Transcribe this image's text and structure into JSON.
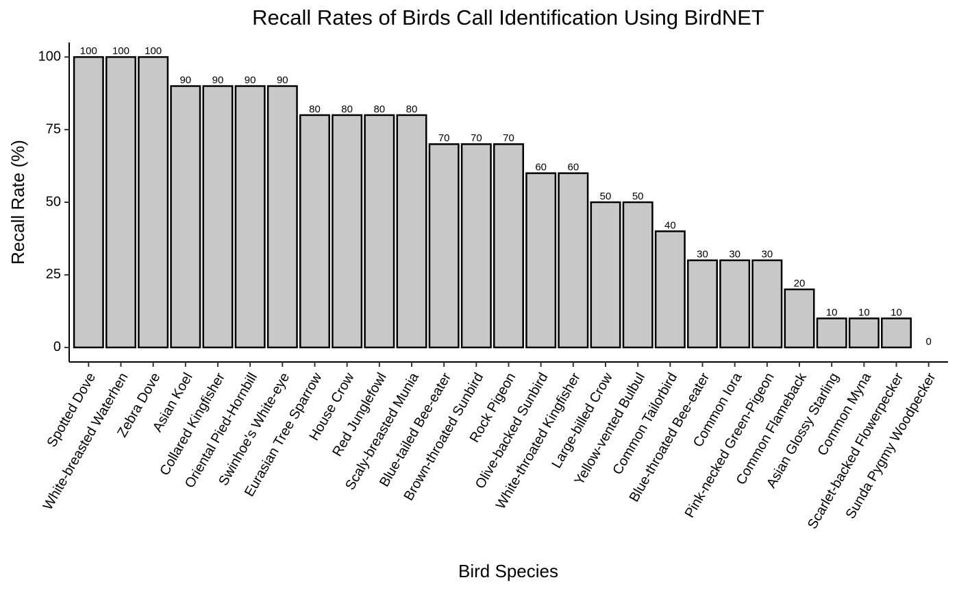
{
  "chart_data": {
    "type": "bar",
    "title": "Recall Rates of Birds Call Identification Using BirdNET",
    "x_label": "Bird Species",
    "y_label": "Recall Rate (%)",
    "categories": [
      "Spotted Dove",
      "White-breasted Waterhen",
      "Zebra Dove",
      "Asian Koel",
      "Collared Kingfisher",
      "Oriental Pied-Hornbill",
      "Swinhoe's White-eye",
      "Eurasian Tree Sparrow",
      "House Crow",
      "Red Junglefowl",
      "Scaly-breasted Munia",
      "Blue-tailed Bee-eater",
      "Brown-throated Sunbird",
      "Rock Pigeon",
      "Olive-backed Sunbird",
      "White-throated Kingfisher",
      "Large-billed Crow",
      "Yellow-vented Bulbul",
      "Common Tailorbird",
      "Blue-throated Bee-eater",
      "Common Iora",
      "Pink-necked Green-Pigeon",
      "Common Flameback",
      "Asian Glossy Starling",
      "Common Myna",
      "Scarlet-backed Flowerpecker",
      "Sunda Pygmy Woodpecker"
    ],
    "values": [
      100,
      100,
      100,
      90,
      90,
      90,
      90,
      80,
      80,
      80,
      80,
      70,
      70,
      70,
      60,
      60,
      50,
      50,
      40,
      30,
      30,
      30,
      20,
      10,
      10,
      10,
      0
    ],
    "color": "#c8c8c8",
    "ylim": [
      -5,
      105
    ],
    "yticks": [
      0,
      25,
      50,
      75,
      100
    ],
    "grid": false
  }
}
